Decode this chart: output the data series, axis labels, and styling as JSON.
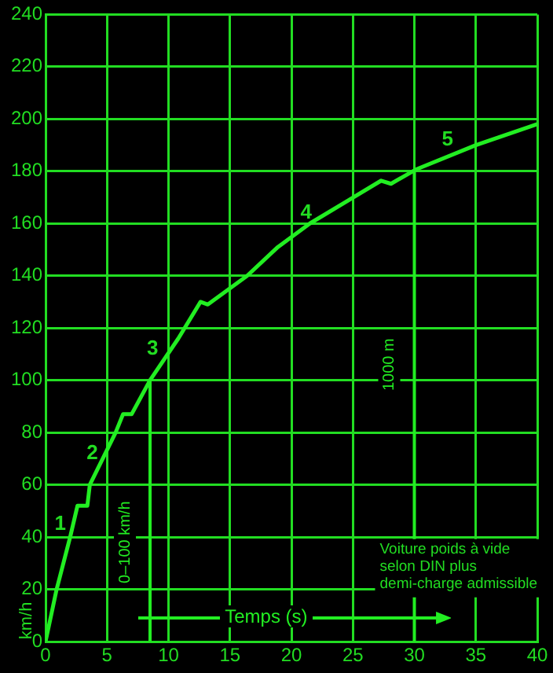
{
  "chart_data": {
    "type": "line",
    "xlabel": "Temps (s)",
    "ylabel": "km/h",
    "series": [
      {
        "color": "#22ee22",
        "x": [
          0,
          0.9,
          2.0,
          2.6,
          3.4,
          3.6,
          5.7,
          6.3,
          7.0,
          8.5,
          10.8,
          12.6,
          13.2,
          16.4,
          18.9,
          21.5,
          27.3,
          28.1,
          30.1,
          35.0,
          40
        ],
        "values": [
          0,
          20,
          40,
          52,
          52,
          60,
          80,
          87,
          87,
          100,
          116,
          130,
          129,
          140,
          151,
          160,
          176.4,
          175.2,
          180.6,
          190,
          198
        ]
      }
    ],
    "xlim": [
      0,
      40
    ],
    "xticks": [
      0,
      5,
      10,
      15,
      20,
      25,
      30,
      35,
      40
    ],
    "ylim": [
      0,
      240
    ],
    "yticks": [
      0,
      20,
      40,
      60,
      80,
      100,
      120,
      140,
      160,
      180,
      200,
      220,
      240
    ],
    "grid": true,
    "legend": false,
    "marker": "none",
    "line_style": "solid",
    "ref_lines": [
      {
        "axis": "x",
        "value": 8.5,
        "label": "0–100 km/h",
        "color": "#22ee22"
      },
      {
        "axis": "x",
        "value": 30,
        "label": "1000 m",
        "color": "#22ee22"
      }
    ],
    "annotations": [
      "1",
      "2",
      "3",
      "4",
      "5",
      "Voiture poids à vide\nselon DIN plus\ndemi-charge admissible"
    ]
  }
}
